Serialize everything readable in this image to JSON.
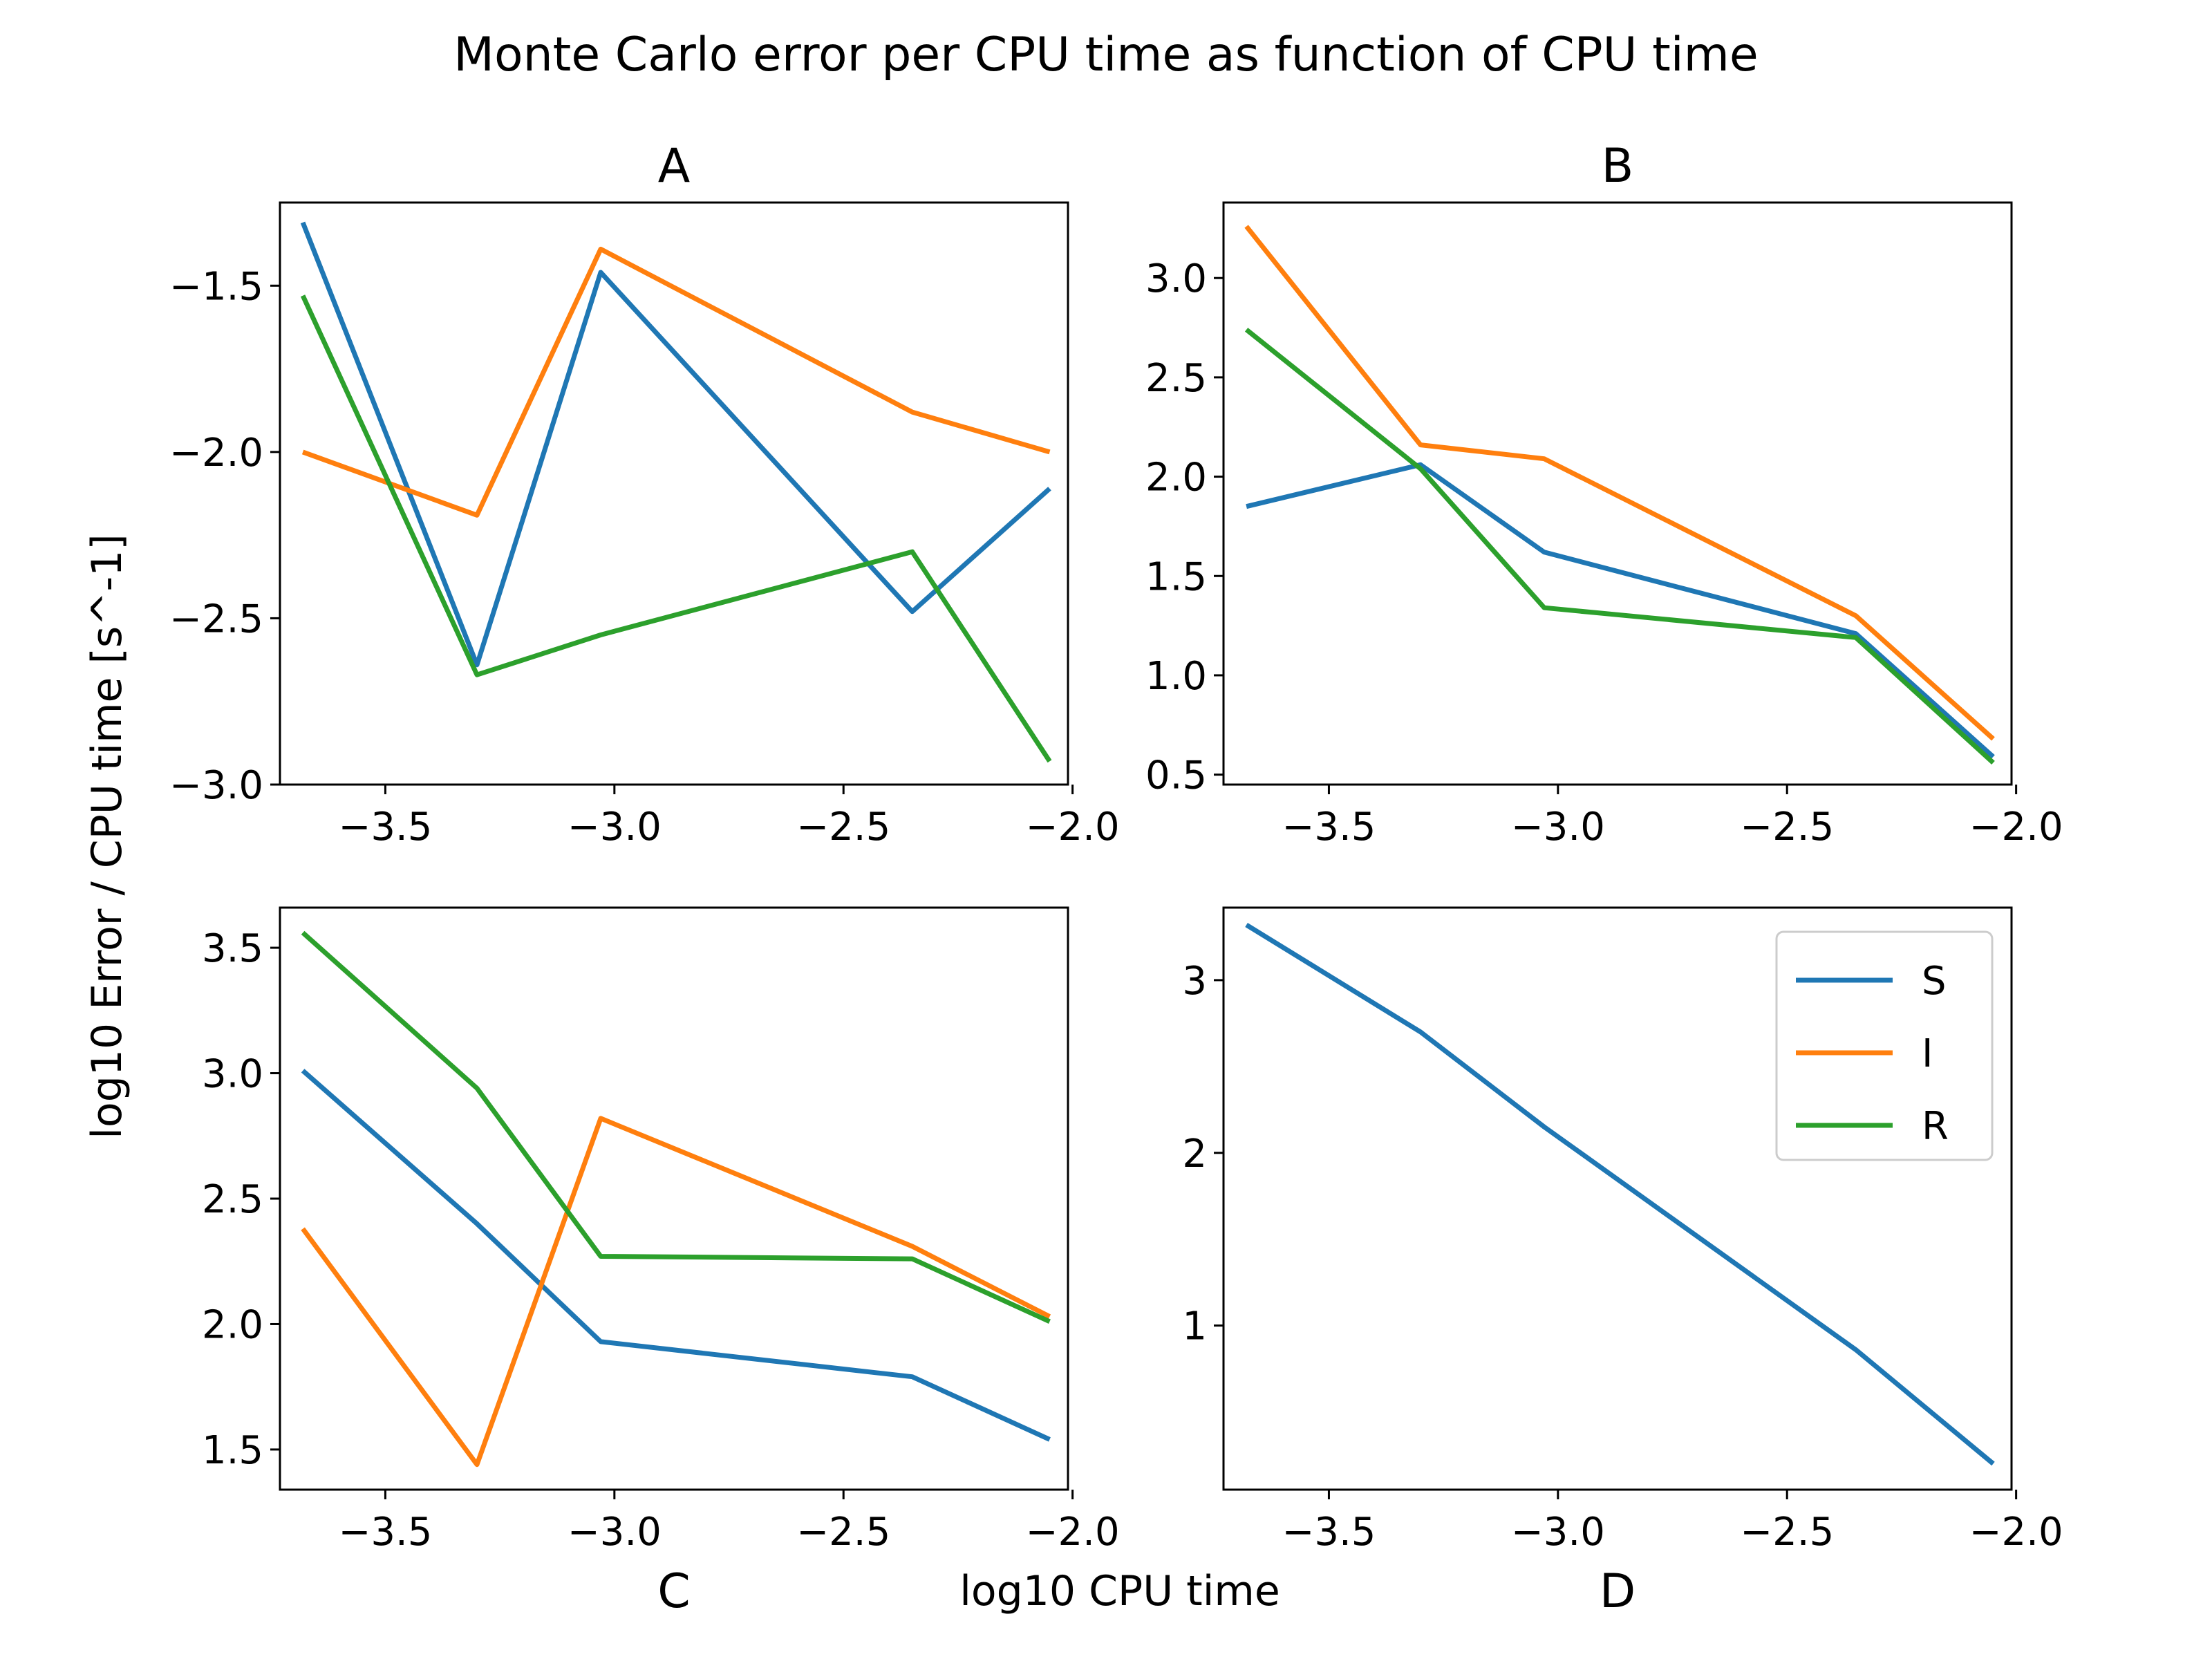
{
  "title": "Monte Carlo error per CPU time as function of CPU time",
  "xlabel": "log10 CPU time",
  "ylabel": "log10 Error / CPU time [s^-1]",
  "colors": {
    "S": "#1f77b4",
    "I": "#ff7f0e",
    "R": "#2ca02c"
  },
  "chart_data": [
    {
      "type": "line",
      "title": "A",
      "xlim": [
        -3.73,
        -2.01
      ],
      "ylim": [
        -3.0,
        -1.25
      ],
      "xticks": [
        -3.5,
        -3.0,
        -2.5,
        -2.0
      ],
      "xtick_labels": [
        "−3.5",
        "−3.0",
        "−2.5",
        "−2.0"
      ],
      "yticks": [
        -1.5,
        -2.0,
        -2.5,
        -3.0
      ],
      "ytick_labels": [
        "−1.5",
        "−2.0",
        "−2.5",
        "−3.0"
      ],
      "x": [
        -3.68,
        -3.3,
        -3.03,
        -2.35,
        -2.05
      ],
      "series": [
        {
          "name": "S",
          "values": [
            -1.31,
            -2.64,
            -1.46,
            -2.48,
            -2.11
          ]
        },
        {
          "name": "I",
          "values": [
            -2.0,
            -2.19,
            -1.39,
            -1.88,
            -2.0
          ]
        },
        {
          "name": "R",
          "values": [
            -1.53,
            -2.67,
            -2.55,
            -2.3,
            -2.93
          ]
        }
      ]
    },
    {
      "type": "line",
      "title": "B",
      "xlim": [
        -3.73,
        -2.01
      ],
      "ylim": [
        0.45,
        3.38
      ],
      "xticks": [
        -3.5,
        -3.0,
        -2.5,
        -2.0
      ],
      "xtick_labels": [
        "−3.5",
        "−3.0",
        "−2.5",
        "−2.0"
      ],
      "yticks": [
        3.0,
        2.5,
        2.0,
        1.5,
        1.0,
        0.5
      ],
      "ytick_labels": [
        "3.0",
        "2.5",
        "2.0",
        "1.5",
        "1.0",
        "0.5"
      ],
      "x": [
        -3.68,
        -3.3,
        -3.03,
        -2.35,
        -2.05
      ],
      "series": [
        {
          "name": "S",
          "values": [
            1.85,
            2.06,
            1.62,
            1.21,
            0.59
          ]
        },
        {
          "name": "I",
          "values": [
            3.26,
            2.16,
            2.09,
            1.3,
            0.68
          ]
        },
        {
          "name": "R",
          "values": [
            2.74,
            2.04,
            1.34,
            1.19,
            0.56
          ]
        }
      ]
    },
    {
      "type": "line",
      "title": "C",
      "xlim": [
        -3.73,
        -2.01
      ],
      "ylim": [
        1.34,
        3.66
      ],
      "xticks": [
        -3.5,
        -3.0,
        -2.5,
        -2.0
      ],
      "xtick_labels": [
        "−3.5",
        "−3.0",
        "−2.5",
        "−2.0"
      ],
      "yticks": [
        3.5,
        3.0,
        2.5,
        2.0,
        1.5
      ],
      "ytick_labels": [
        "3.5",
        "3.0",
        "2.5",
        "2.0",
        "1.5"
      ],
      "x": [
        -3.68,
        -3.3,
        -3.03,
        -2.35,
        -2.05
      ],
      "series": [
        {
          "name": "S",
          "values": [
            3.01,
            2.4,
            1.93,
            1.79,
            1.54
          ]
        },
        {
          "name": "I",
          "values": [
            2.38,
            1.44,
            2.82,
            2.31,
            2.03
          ]
        },
        {
          "name": "R",
          "values": [
            3.56,
            2.94,
            2.27,
            2.26,
            2.01
          ]
        }
      ]
    },
    {
      "type": "line",
      "title": "D",
      "xlim": [
        -3.73,
        -2.01
      ],
      "ylim": [
        0.05,
        3.42
      ],
      "xticks": [
        -3.5,
        -3.0,
        -2.5,
        -2.0
      ],
      "xtick_labels": [
        "−3.5",
        "−3.0",
        "−2.5",
        "−2.0"
      ],
      "yticks": [
        3,
        2,
        1
      ],
      "ytick_labels": [
        "3",
        "2",
        "1"
      ],
      "x": [
        -3.68,
        -3.3,
        -3.03,
        -2.35,
        -2.05
      ],
      "legend": {
        "placement": "upper right",
        "entries": [
          "S",
          "I",
          "R"
        ]
      },
      "series": [
        {
          "name": "S",
          "values": [
            3.32,
            2.7,
            2.15,
            0.86,
            0.2
          ]
        }
      ]
    }
  ]
}
